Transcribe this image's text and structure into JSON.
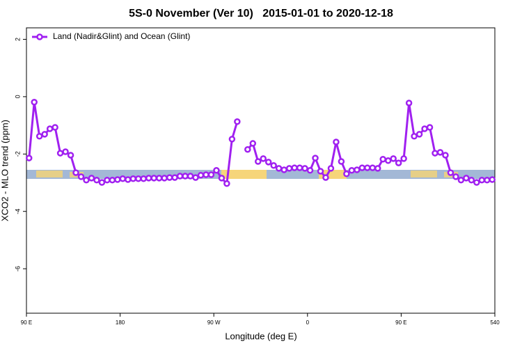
{
  "chart_data": {
    "type": "line",
    "title": "5S-0 November (Ver 10)   2015-01-01 to 2020-12-18",
    "x_label": "Longitude (deg E)",
    "y_label": "XCO2 - MLO trend (ppm)",
    "x": [
      92.5,
      97.5,
      102.5,
      107.5,
      112.5,
      117.5,
      122.5,
      127.5,
      132.5,
      137.5,
      142.5,
      147.5,
      152.5,
      157.5,
      162.5,
      167.5,
      172.5,
      177.5,
      182.5,
      187.5,
      192.5,
      197.5,
      202.5,
      207.5,
      212.5,
      217.5,
      222.5,
      227.5,
      232.5,
      237.5,
      242.5,
      247.5,
      252.5,
      257.5,
      262.5,
      267.5,
      272.5,
      277.5,
      282.5,
      287.5,
      292.5,
      297.5,
      302.5,
      307.5,
      312.5,
      317.5,
      322.5,
      327.5,
      332.5,
      337.5,
      342.5,
      347.5,
      352.5,
      357.5,
      362.5,
      367.5,
      372.5,
      377.5,
      382.5,
      387.5,
      392.5,
      397.5,
      402.5,
      407.5,
      412.5,
      417.5,
      422.5,
      427.5,
      432.5,
      437.5,
      442.5,
      447.5,
      452.5,
      457.5,
      462.5,
      467.5,
      472.5,
      477.5,
      482.5,
      487.5,
      492.5,
      497.5,
      502.5,
      507.5,
      512.5,
      517.5,
      522.5,
      527.5,
      532.5,
      537.5
    ],
    "series": [
      {
        "name": "Land (Nadir&Glint) and Ocean (Glint)",
        "color": "#a020f0",
        "values": [
          -2.14,
          -0.19,
          -1.38,
          -1.31,
          -1.12,
          -1.07,
          -1.97,
          -1.92,
          -2.04,
          -2.65,
          -2.79,
          -2.91,
          -2.84,
          -2.91,
          -2.99,
          -2.91,
          -2.91,
          -2.89,
          -2.86,
          -2.89,
          -2.86,
          -2.86,
          -2.86,
          -2.84,
          -2.84,
          -2.84,
          -2.84,
          -2.82,
          -2.82,
          -2.77,
          -2.77,
          -2.77,
          -2.82,
          -2.74,
          -2.72,
          -2.72,
          -2.57,
          -2.84,
          -3.03,
          -1.48,
          -0.87,
          null,
          -1.84,
          -1.63,
          -2.26,
          -2.16,
          -2.28,
          -2.4,
          -2.5,
          -2.55,
          -2.5,
          -2.48,
          -2.48,
          -2.5,
          -2.57,
          -2.14,
          -2.6,
          -2.82,
          -2.5,
          -1.58,
          -2.26,
          -2.69,
          -2.57,
          -2.55,
          -2.48,
          -2.48,
          -2.48,
          -2.5,
          -2.18,
          -2.23,
          -2.16,
          -2.31,
          -2.16,
          -0.22,
          -1.38,
          -1.31,
          -1.12,
          -1.07,
          -1.97,
          -1.94,
          -2.04,
          -2.65,
          -2.79,
          -2.91,
          -2.84,
          -2.91,
          -2.99,
          -2.91,
          -2.91,
          -2.89
        ]
      }
    ],
    "xlim": [
      90,
      540
    ],
    "xticks": [
      {
        "value": 90,
        "label": "90 E"
      },
      180,
      {
        "value": 270,
        "label": "90 W"
      },
      {
        "value": 360,
        "label": "0"
      },
      {
        "value": 450,
        "label": "90 E"
      },
      540
    ],
    "ylim": [
      -7.55,
      2.4
    ],
    "yticks": [
      -6,
      -4,
      -2,
      0,
      2
    ],
    "legend": "top-left"
  }
}
